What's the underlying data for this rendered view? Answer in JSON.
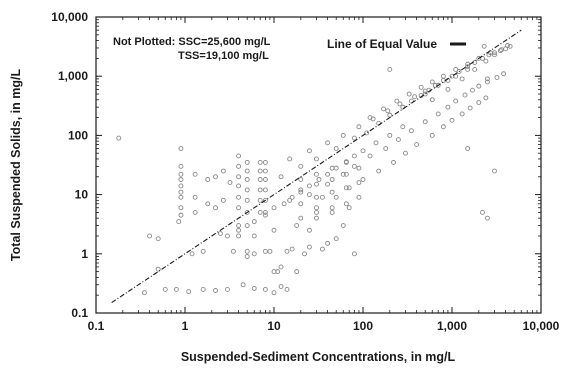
{
  "chart_data": {
    "type": "scatter",
    "title": "",
    "xlabel": "Suspended-Sediment Concentrations, in mg/L",
    "ylabel": "Total Suspended Solids, in mg/L",
    "xscale": "log",
    "yscale": "log",
    "xlim": [
      0.1,
      10000
    ],
    "ylim": [
      0.1,
      10000
    ],
    "x_ticks": [
      0.1,
      1,
      10,
      100,
      1000,
      10000
    ],
    "x_tick_labels": [
      "0.1",
      "1",
      "10",
      "100",
      "1,000",
      "10,000"
    ],
    "y_ticks": [
      0.1,
      1,
      10,
      100,
      1000,
      10000
    ],
    "y_tick_labels": [
      "0.1",
      "1",
      "10",
      "100",
      "1,000",
      "10,000"
    ],
    "grid": false,
    "annotation": {
      "line1": "Not Plotted: SSC=25,600 mg/L",
      "line2": "TSS=19,100 mg/L"
    },
    "reference_line": {
      "label": "Line of Equal Value",
      "x": [
        0.15,
        6000
      ],
      "y": [
        0.15,
        6000
      ]
    },
    "marker_color": "#8a8a8a",
    "reference_line_color": "#1a1a1a",
    "points": {
      "x": [
        0.18,
        0.5,
        0.9,
        0.9,
        0.9,
        0.9,
        0.9,
        0.9,
        0.9,
        0.9,
        0.9,
        0.85,
        1.3,
        1.3,
        1.3,
        1.8,
        1.8,
        2.2,
        2.2,
        2.7,
        2.7,
        3.2,
        0.4,
        0.5,
        1.6,
        2.5,
        1.2,
        0.35,
        0.6,
        0.8,
        1.1,
        1.6,
        2.2,
        3,
        4.5,
        6,
        8,
        10,
        12,
        14,
        11,
        18,
        25,
        6,
        9,
        16,
        25,
        40,
        50,
        6,
        10,
        18,
        30,
        45,
        70,
        12,
        20,
        30,
        50,
        80,
        110,
        150,
        200,
        280,
        350,
        450,
        550,
        650,
        800,
        1000,
        1200,
        1500,
        1800,
        2200,
        2600,
        3000,
        3500,
        4000,
        4500,
        25,
        40,
        60,
        80,
        120,
        180,
        250,
        350,
        500,
        700,
        900,
        1100,
        1400,
        1700,
        2000,
        2500,
        3200,
        3800,
        30,
        50,
        70,
        100,
        150,
        220,
        300,
        400,
        600,
        800,
        1000,
        1300,
        1600,
        2000,
        2400,
        15,
        25,
        40,
        60,
        90,
        130,
        190,
        260,
        380,
        500,
        700,
        900,
        1100,
        1500,
        5,
        5,
        5,
        5,
        5,
        5,
        7,
        7,
        7,
        7,
        7,
        7,
        8,
        8,
        8,
        8,
        8,
        8,
        4,
        4,
        4,
        4,
        4,
        4,
        4,
        4,
        20,
        20,
        20,
        20,
        30,
        30,
        30,
        30,
        45,
        45,
        45,
        45,
        65,
        65,
        65,
        65,
        90,
        90,
        90,
        3,
        4,
        5,
        6,
        8,
        10,
        13,
        16,
        20,
        25,
        32,
        40,
        50,
        65,
        80,
        100,
        140,
        200,
        280,
        120,
        170,
        240,
        330,
        450,
        600,
        800,
        1100,
        1500,
        2000,
        2700,
        600,
        900,
        1300,
        1800,
        2400,
        3000,
        3600,
        4200,
        2200,
        2500,
        3000,
        2300,
        200,
        80,
        500,
        1500,
        2500,
        35,
        10,
        12,
        5,
        8,
        14,
        22,
        35,
        3.5,
        5,
        15,
        60
      ],
      "y": [
        90,
        0.55,
        60,
        30,
        22,
        18,
        14,
        11,
        9,
        6,
        4.5,
        3.5,
        22,
        9,
        5,
        18,
        7,
        20,
        6,
        25,
        8,
        16,
        2,
        1.8,
        1.1,
        2.2,
        1.0,
        0.22,
        0.25,
        0.25,
        0.23,
        0.25,
        0.24,
        0.25,
        0.3,
        0.26,
        0.25,
        0.22,
        0.28,
        0.25,
        0.5,
        0.5,
        2.5,
        1,
        1.1,
        1.2,
        1.3,
        1.5,
        1.8,
        2,
        2.5,
        3,
        4,
        5,
        6,
        20,
        30,
        40,
        60,
        90,
        110,
        160,
        220,
        300,
        380,
        470,
        580,
        700,
        850,
        1000,
        1200,
        1450,
        1700,
        2000,
        2300,
        2500,
        2700,
        2900,
        3200,
        10,
        15,
        22,
        30,
        45,
        60,
        85,
        120,
        170,
        230,
        300,
        380,
        480,
        580,
        680,
        800,
        950,
        1100,
        6,
        9,
        13,
        18,
        25,
        35,
        50,
        70,
        100,
        140,
        180,
        230,
        290,
        360,
        430,
        40,
        55,
        75,
        100,
        140,
        190,
        260,
        340,
        450,
        560,
        700,
        850,
        1000,
        1300,
        5,
        8,
        12,
        18,
        25,
        35,
        5,
        8,
        12,
        18,
        25,
        35,
        5,
        8,
        12,
        18,
        25,
        35,
        6,
        9,
        14,
        20,
        30,
        45,
        3,
        2,
        4,
        7,
        12,
        18,
        5,
        9,
        15,
        22,
        6,
        11,
        18,
        28,
        7,
        13,
        22,
        35,
        9,
        16,
        28,
        2,
        2.5,
        3,
        3.5,
        4.5,
        6,
        7,
        9,
        11,
        14,
        18,
        22,
        28,
        36,
        45,
        55,
        75,
        100,
        140,
        200,
        280,
        380,
        500,
        650,
        800,
        1000,
        1300,
        1600,
        2000,
        2500,
        400,
        600,
        900,
        1300,
        1800,
        2300,
        2800,
        3300,
        5,
        4,
        25,
        3200,
        1300,
        1,
        500,
        60,
        900,
        9,
        0.5,
        0.6,
        0.9,
        1.1,
        1.1,
        1.0,
        1.2,
        1.1,
        1.1,
        8,
        3
      ]
    }
  }
}
